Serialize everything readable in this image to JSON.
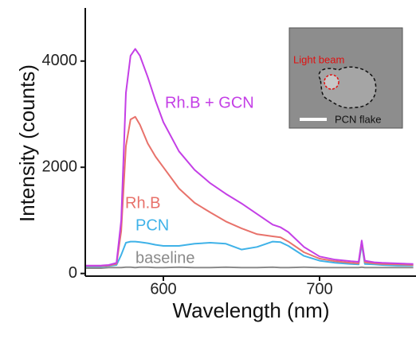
{
  "chart_data": {
    "type": "line",
    "xlabel": "Wavelength (nm)",
    "ylabel": "Intensity (counts)",
    "x": [
      550,
      555,
      560,
      565,
      570,
      573,
      576,
      579,
      582,
      585,
      590,
      595,
      600,
      610,
      620,
      630,
      640,
      650,
      660,
      670,
      675,
      680,
      690,
      700,
      710,
      720,
      725,
      727,
      729,
      735,
      740,
      750,
      760
    ],
    "series": [
      {
        "name": "Rh.B + GCN",
        "color": "#c43fe6",
        "values": [
          150,
          150,
          150,
          160,
          200,
          1000,
          3400,
          4100,
          4230,
          4100,
          3700,
          3250,
          2850,
          2300,
          1950,
          1700,
          1500,
          1320,
          1120,
          920,
          870,
          780,
          500,
          320,
          260,
          230,
          220,
          620,
          240,
          210,
          200,
          190,
          180
        ]
      },
      {
        "name": "Rh.B",
        "color": "#e8726b",
        "values": [
          140,
          140,
          140,
          150,
          180,
          800,
          2400,
          2900,
          2950,
          2800,
          2450,
          2200,
          2000,
          1600,
          1330,
          1150,
          980,
          850,
          740,
          700,
          680,
          600,
          400,
          280,
          230,
          200,
          190,
          600,
          210,
          190,
          180,
          170,
          160
        ]
      },
      {
        "name": "PCN",
        "color": "#3fb2e8",
        "values": [
          130,
          130,
          130,
          140,
          160,
          350,
          580,
          600,
          600,
          590,
          570,
          540,
          520,
          520,
          560,
          580,
          560,
          450,
          500,
          600,
          590,
          520,
          330,
          240,
          200,
          180,
          170,
          550,
          180,
          170,
          160,
          150,
          150
        ]
      },
      {
        "name": "baseline",
        "color": "#8a8a8a",
        "values": [
          100,
          100,
          100,
          110,
          110,
          110,
          120,
          120,
          110,
          120,
          120,
          110,
          110,
          120,
          110,
          110,
          120,
          110,
          110,
          120,
          110,
          110,
          120,
          110,
          110,
          110,
          110,
          120,
          110,
          110,
          110,
          110,
          110
        ]
      }
    ],
    "xlim": [
      550,
      760
    ],
    "ylim": [
      -50,
      5000
    ],
    "xticks": [
      600,
      700
    ],
    "yticks": [
      0,
      2000,
      4000
    ],
    "inset_labels": [
      "Light beam",
      "PCN flake"
    ]
  }
}
